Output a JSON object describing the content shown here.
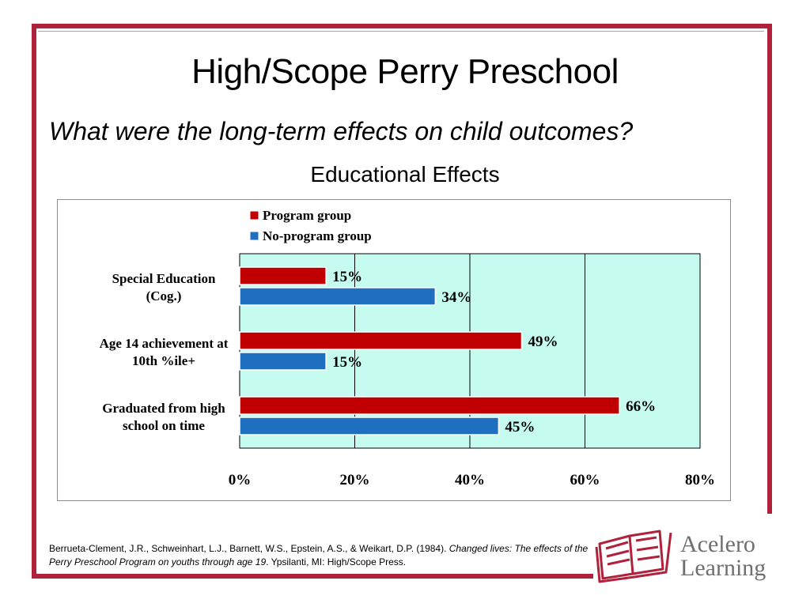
{
  "slide": {
    "title": "High/Scope Perry Preschool",
    "subtitle": "What were the long-term effects on child outcomes?",
    "section_title": "Educational Effects"
  },
  "colors": {
    "frame": "#b0223c",
    "program": "#c00000",
    "no_program": "#1f6fc0",
    "plot_bg": "#c6fcef"
  },
  "chart_data": {
    "type": "bar",
    "orientation": "horizontal",
    "categories": [
      [
        "Special Education",
        "(Cog.)"
      ],
      [
        "Age 14 achievement  at",
        "10th %ile+"
      ],
      [
        "Graduated  from high",
        "school on time"
      ]
    ],
    "series": [
      {
        "name": "Program  group",
        "values": [
          15,
          49,
          66
        ],
        "labels": [
          "15%",
          "49%",
          "66%"
        ]
      },
      {
        "name": "No-program  group",
        "values": [
          34,
          15,
          45
        ],
        "labels": [
          "34%",
          "15%",
          "45%"
        ]
      }
    ],
    "xlim": [
      0,
      80
    ],
    "xticks": [
      0,
      20,
      40,
      60,
      80
    ],
    "xtick_labels": [
      "0%",
      "20%",
      "40%",
      "60%",
      "80%"
    ],
    "grid": "vertical",
    "legend_position": "top"
  },
  "citation": {
    "plain_1": "Berrueta-Clement, J.R., Schweinhart, L.J., Barnett, W.S., Epstein, A.S., & Weikart, D.P. (1984). ",
    "italic": "Changed lives:  The effects of the Perry Preschool Program on youths through age 19",
    "plain_2": ". Ypsilanti, MI: High/Scope Press."
  },
  "logo": {
    "line1": "Acelero",
    "line2": "Learning",
    "icon": "open-book-icon"
  }
}
